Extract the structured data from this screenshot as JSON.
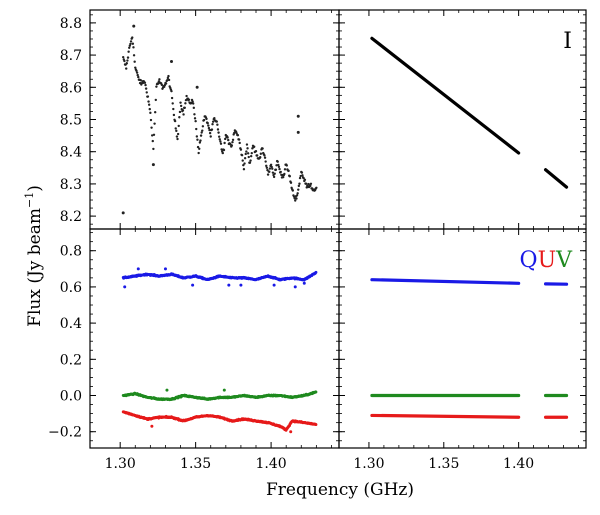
{
  "chart_data": {
    "type": "scatter",
    "xlabel": "Frequency (GHz)",
    "ylabel_main": "Flux (Jy beam",
    "ylabel_sup": "−1",
    "ylabel_close": ")",
    "xlim": [
      1.28,
      1.445
    ],
    "x_ticks": [
      1.3,
      1.35,
      1.4
    ],
    "x_tick_labels": [
      "1.30",
      "1.35",
      "1.40"
    ],
    "top_row": {
      "ylim": [
        8.16,
        8.84
      ],
      "y_ticks": [
        8.2,
        8.3,
        8.4,
        8.5,
        8.6,
        8.7,
        8.8
      ],
      "y_tick_labels": [
        "8.2",
        "8.3",
        "8.4",
        "8.5",
        "8.6",
        "8.7",
        "8.8"
      ]
    },
    "bottom_row": {
      "ylim": [
        -0.29,
        0.92
      ],
      "y_ticks": [
        -0.2,
        0.0,
        0.2,
        0.4,
        0.6,
        0.8
      ],
      "y_tick_labels": [
        "−0.2",
        "0.0",
        "0.2",
        "0.4",
        "0.6",
        "0.8"
      ]
    },
    "panels": [
      {
        "id": "data-I",
        "row": "top",
        "col": "left",
        "series": [
          {
            "color": "#222222",
            "style": "points",
            "anchors": [
              [
                1.302,
                8.69
              ],
              [
                1.304,
                8.66
              ],
              [
                1.306,
                8.72
              ],
              [
                1.308,
                8.76
              ],
              [
                1.31,
                8.66
              ],
              [
                1.312,
                8.63
              ],
              [
                1.314,
                8.61
              ],
              [
                1.316,
                8.62
              ],
              [
                1.318,
                8.58
              ],
              [
                1.32,
                8.52
              ],
              [
                1.322,
                8.41
              ],
              [
                1.324,
                8.6
              ],
              [
                1.326,
                8.62
              ],
              [
                1.328,
                8.6
              ],
              [
                1.33,
                8.61
              ],
              [
                1.332,
                8.63
              ],
              [
                1.334,
                8.58
              ],
              [
                1.336,
                8.5
              ],
              [
                1.338,
                8.44
              ],
              [
                1.34,
                8.55
              ],
              [
                1.342,
                8.52
              ],
              [
                1.344,
                8.57
              ],
              [
                1.346,
                8.55
              ],
              [
                1.348,
                8.56
              ],
              [
                1.35,
                8.49
              ],
              [
                1.352,
                8.4
              ],
              [
                1.354,
                8.46
              ],
              [
                1.356,
                8.51
              ],
              [
                1.358,
                8.49
              ],
              [
                1.36,
                8.45
              ],
              [
                1.362,
                8.5
              ],
              [
                1.364,
                8.49
              ],
              [
                1.366,
                8.44
              ],
              [
                1.368,
                8.39
              ],
              [
                1.37,
                8.45
              ],
              [
                1.372,
                8.43
              ],
              [
                1.374,
                8.42
              ],
              [
                1.376,
                8.47
              ],
              [
                1.378,
                8.45
              ],
              [
                1.38,
                8.41
              ],
              [
                1.382,
                8.35
              ],
              [
                1.384,
                8.42
              ],
              [
                1.386,
                8.36
              ],
              [
                1.388,
                8.42
              ],
              [
                1.39,
                8.4
              ],
              [
                1.392,
                8.37
              ],
              [
                1.394,
                8.41
              ],
              [
                1.396,
                8.38
              ],
              [
                1.398,
                8.33
              ],
              [
                1.4,
                8.36
              ],
              [
                1.402,
                8.32
              ],
              [
                1.404,
                8.37
              ],
              [
                1.406,
                8.34
              ],
              [
                1.408,
                8.32
              ],
              [
                1.41,
                8.36
              ],
              [
                1.412,
                8.33
              ],
              [
                1.414,
                8.28
              ],
              [
                1.416,
                8.25
              ],
              [
                1.418,
                8.28
              ],
              [
                1.42,
                8.34
              ],
              [
                1.422,
                8.31
              ],
              [
                1.424,
                8.29
              ],
              [
                1.426,
                8.3
              ],
              [
                1.428,
                8.28
              ],
              [
                1.43,
                8.29
              ]
            ],
            "outliers": [
              [
                1.302,
                8.21
              ],
              [
                1.309,
                8.79
              ],
              [
                1.322,
                8.36
              ],
              [
                1.334,
                8.68
              ],
              [
                1.351,
                8.6
              ],
              [
                1.418,
                8.51
              ],
              [
                1.418,
                8.46
              ]
            ]
          }
        ]
      },
      {
        "id": "model-I",
        "row": "top",
        "col": "right",
        "label": [
          {
            "text": "I",
            "color": "#000000"
          }
        ],
        "series": [
          {
            "color": "#000000",
            "style": "line",
            "segments": [
              [
                [
                  1.302,
                  8.752
                ],
                [
                  1.4,
                  8.396
                ]
              ],
              [
                [
                  1.418,
                  8.344
                ],
                [
                  1.432,
                  8.29
                ]
              ]
            ]
          }
        ]
      },
      {
        "id": "data-QUV",
        "row": "bottom",
        "col": "left",
        "series": [
          {
            "color": "#1a1ae6",
            "style": "points",
            "anchors": [
              [
                1.302,
                0.65
              ],
              [
                1.31,
                0.66
              ],
              [
                1.318,
                0.67
              ],
              [
                1.326,
                0.66
              ],
              [
                1.334,
                0.67
              ],
              [
                1.342,
                0.65
              ],
              [
                1.35,
                0.66
              ],
              [
                1.358,
                0.64
              ],
              [
                1.366,
                0.66
              ],
              [
                1.374,
                0.65
              ],
              [
                1.382,
                0.65
              ],
              [
                1.39,
                0.64
              ],
              [
                1.398,
                0.66
              ],
              [
                1.406,
                0.64
              ],
              [
                1.414,
                0.65
              ],
              [
                1.422,
                0.64
              ],
              [
                1.43,
                0.68
              ]
            ],
            "outliers": [
              [
                1.303,
                0.6
              ],
              [
                1.312,
                0.7
              ],
              [
                1.33,
                0.7
              ],
              [
                1.348,
                0.61
              ],
              [
                1.372,
                0.61
              ],
              [
                1.38,
                0.61
              ],
              [
                1.402,
                0.61
              ],
              [
                1.416,
                0.6
              ],
              [
                1.422,
                0.62
              ]
            ]
          },
          {
            "color": "#1f8a1f",
            "style": "points",
            "anchors": [
              [
                1.302,
                0.0
              ],
              [
                1.31,
                0.01
              ],
              [
                1.318,
                -0.01
              ],
              [
                1.326,
                -0.02
              ],
              [
                1.334,
                -0.02
              ],
              [
                1.342,
                0.0
              ],
              [
                1.35,
                -0.01
              ],
              [
                1.358,
                -0.02
              ],
              [
                1.366,
                -0.01
              ],
              [
                1.374,
                -0.01
              ],
              [
                1.382,
                0.0
              ],
              [
                1.39,
                -0.01
              ],
              [
                1.398,
                0.0
              ],
              [
                1.406,
                0.0
              ],
              [
                1.414,
                -0.01
              ],
              [
                1.422,
                0.0
              ],
              [
                1.43,
                0.02
              ]
            ],
            "outliers": [
              [
                1.331,
                0.03
              ],
              [
                1.369,
                0.03
              ]
            ]
          },
          {
            "color": "#e61a1a",
            "style": "points",
            "anchors": [
              [
                1.302,
                -0.09
              ],
              [
                1.31,
                -0.11
              ],
              [
                1.318,
                -0.13
              ],
              [
                1.326,
                -0.12
              ],
              [
                1.334,
                -0.12
              ],
              [
                1.342,
                -0.14
              ],
              [
                1.35,
                -0.12
              ],
              [
                1.358,
                -0.11
              ],
              [
                1.366,
                -0.12
              ],
              [
                1.374,
                -0.14
              ],
              [
                1.382,
                -0.13
              ],
              [
                1.39,
                -0.14
              ],
              [
                1.398,
                -0.15
              ],
              [
                1.406,
                -0.17
              ],
              [
                1.41,
                -0.19
              ],
              [
                1.414,
                -0.14
              ],
              [
                1.422,
                -0.15
              ],
              [
                1.43,
                -0.16
              ]
            ],
            "outliers": [
              [
                1.321,
                -0.17
              ],
              [
                1.413,
                -0.2
              ]
            ]
          }
        ]
      },
      {
        "id": "model-QUV",
        "row": "bottom",
        "col": "right",
        "label": [
          {
            "text": "Q",
            "color": "#1a1ae6"
          },
          {
            "text": "U",
            "color": "#e61a1a"
          },
          {
            "text": "V",
            "color": "#1f8a1f"
          }
        ],
        "series": [
          {
            "color": "#1a1ae6",
            "style": "line",
            "segments": [
              [
                [
                  1.302,
                  0.64
                ],
                [
                  1.4,
                  0.62
                ]
              ],
              [
                [
                  1.418,
                  0.617
                ],
                [
                  1.432,
                  0.615
                ]
              ]
            ]
          },
          {
            "color": "#1f8a1f",
            "style": "line",
            "segments": [
              [
                [
                  1.302,
                  0.0
                ],
                [
                  1.4,
                  0.0
                ]
              ],
              [
                [
                  1.418,
                  0.0
                ],
                [
                  1.432,
                  0.0
                ]
              ]
            ]
          },
          {
            "color": "#e61a1a",
            "style": "line",
            "segments": [
              [
                [
                  1.302,
                  -0.11
                ],
                [
                  1.4,
                  -0.12
                ]
              ],
              [
                [
                  1.418,
                  -0.12
                ],
                [
                  1.432,
                  -0.12
                ]
              ]
            ]
          }
        ]
      }
    ]
  }
}
